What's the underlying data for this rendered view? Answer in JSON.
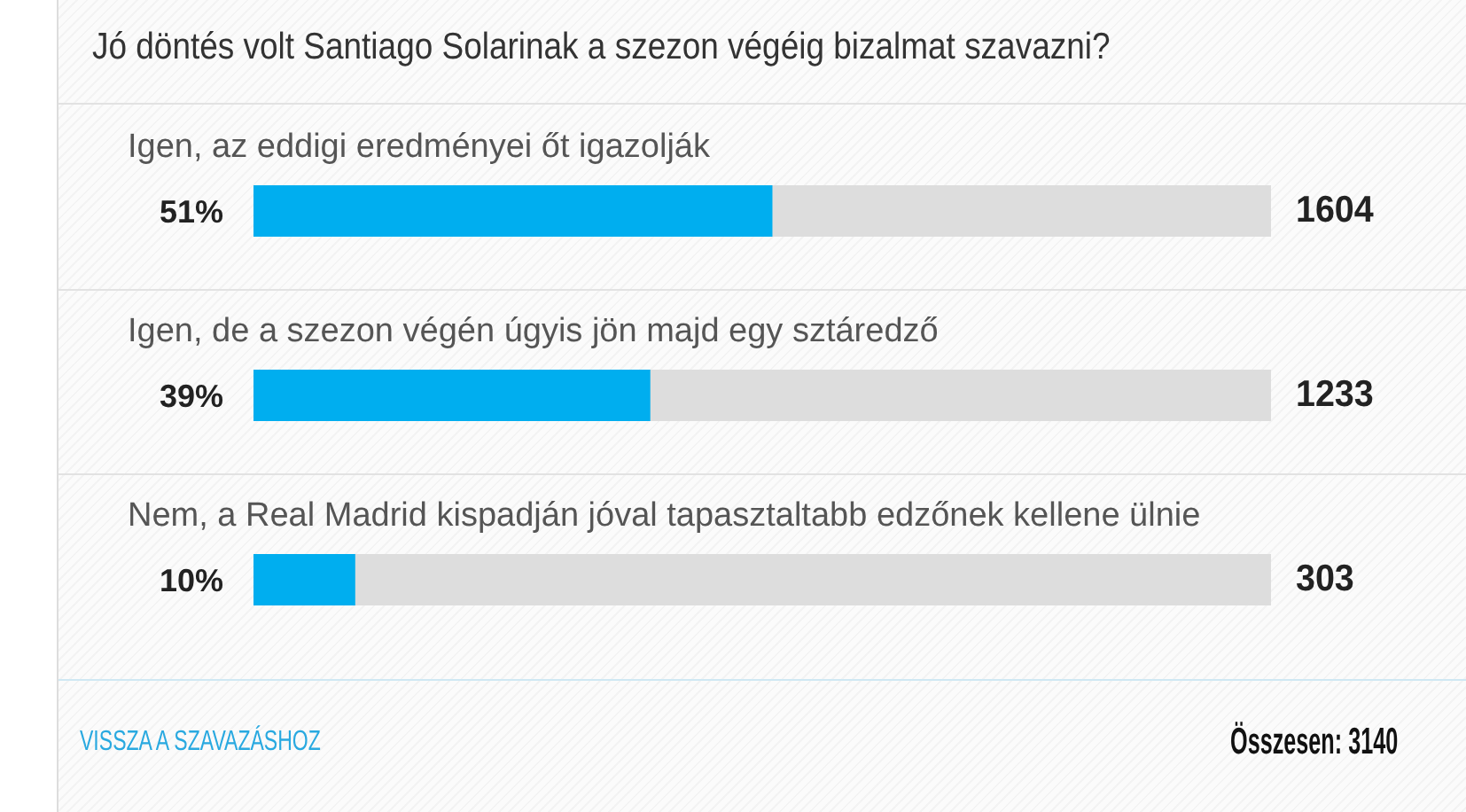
{
  "chart_data": {
    "type": "bar",
    "orientation": "horizontal",
    "title": "Jó döntés volt Santiago Solarinak a szezon végéig bizalmat szavazni?",
    "categories": [
      "Igen, az eddigi eredményei őt igazolják",
      "Igen, de a szezon végén úgyis jön majd egy sztáredző",
      "Nem, a Real Madrid kispadján jóval tapasztaltabb edzőnek kellene ülnie"
    ],
    "values": [
      51,
      39,
      10
    ],
    "value_labels": [
      "51%",
      "39%",
      "10%"
    ],
    "color": "#00aeef",
    "xlim": [
      0,
      100
    ],
    "tick_labels": "y",
    "annotations": [
      "1604",
      "1233",
      "303",
      "VISSZA A SZAVAZÁSHOZ",
      "Összesen: 3140"
    ]
  }
}
